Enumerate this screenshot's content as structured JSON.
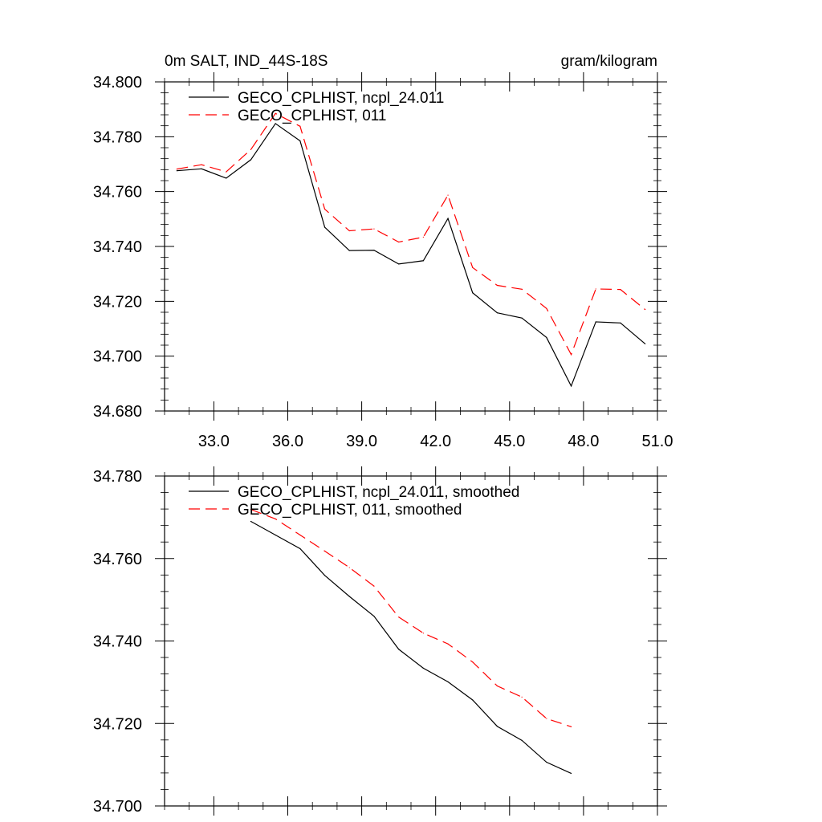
{
  "chart_data": [
    {
      "type": "line",
      "title": "0m SALT, IND_44S-18S",
      "units": "gram/kilogram",
      "xlabel": "",
      "ylabel": "",
      "xlim": [
        31.0,
        51.0
      ],
      "ylim": [
        34.68,
        34.8
      ],
      "xticks": [
        33.0,
        36.0,
        39.0,
        42.0,
        45.0,
        48.0,
        51.0
      ],
      "xtick_labels": [
        "33.0",
        "36.0",
        "39.0",
        "42.0",
        "45.0",
        "48.0",
        "51.0"
      ],
      "yticks": [
        34.68,
        34.7,
        34.72,
        34.74,
        34.76,
        34.78,
        34.8
      ],
      "ytick_labels": [
        "34.680",
        "34.700",
        "34.720",
        "34.740",
        "34.760",
        "34.780",
        "34.800"
      ],
      "legend_position": "top-left",
      "x": [
        31.5,
        32.5,
        33.5,
        34.5,
        35.5,
        36.5,
        37.5,
        38.5,
        39.5,
        40.5,
        41.5,
        42.5,
        43.5,
        44.5,
        45.5,
        46.5,
        47.5,
        48.5,
        49.5,
        50.5
      ],
      "series": [
        {
          "name": "GECO_CPLHIST, ncpl_24.011",
          "color": "#000000",
          "dash": "solid",
          "values": [
            34.7676,
            34.7683,
            34.7649,
            34.7716,
            34.7848,
            34.7785,
            34.747,
            34.7385,
            34.7386,
            34.7336,
            34.7348,
            34.7502,
            34.7231,
            34.7158,
            34.7139,
            34.7068,
            34.6891,
            34.7125,
            34.7121,
            34.7045
          ]
        },
        {
          "name": "GECO_CPLHIST, 011",
          "color": "#ff0000",
          "dash": "dashed",
          "values": [
            34.7682,
            34.7698,
            34.7672,
            34.7753,
            34.7885,
            34.7838,
            34.7536,
            34.7457,
            34.7464,
            34.7416,
            34.7434,
            34.7587,
            34.7323,
            34.7258,
            34.7244,
            34.7174,
            34.7006,
            34.7245,
            34.7243,
            34.717
          ]
        }
      ]
    },
    {
      "type": "line",
      "title": "",
      "xlabel": "",
      "ylabel": "",
      "xlim": [
        31.0,
        51.0
      ],
      "ylim": [
        34.7,
        34.78
      ],
      "xticks": [
        33.0,
        36.0,
        39.0,
        42.0,
        45.0,
        48.0,
        51.0
      ],
      "yticks": [
        34.7,
        34.72,
        34.74,
        34.76,
        34.78
      ],
      "ytick_labels": [
        "34.700",
        "34.720",
        "34.740",
        "34.760",
        "34.780"
      ],
      "legend_position": "top-left",
      "x": [
        34.5,
        35.5,
        36.5,
        37.5,
        38.5,
        39.5,
        40.5,
        41.5,
        42.5,
        43.5,
        44.5,
        45.5,
        46.5,
        47.5
      ],
      "series": [
        {
          "name": "GECO_CPLHIST, ncpl_24.011, smoothed",
          "color": "#000000",
          "dash": "solid",
          "values": [
            34.769,
            34.7657,
            34.7624,
            34.7559,
            34.7508,
            34.746,
            34.738,
            34.7334,
            34.7301,
            34.7257,
            34.7193,
            34.7159,
            34.7106,
            34.7079
          ]
        },
        {
          "name": "GECO_CPLHIST, 011, smoothed",
          "color": "#ff0000",
          "dash": "dashed",
          "values": [
            34.7719,
            34.7696,
            34.7657,
            34.7618,
            34.7578,
            34.7533,
            34.7458,
            34.7419,
            34.7393,
            34.7349,
            34.7291,
            34.7264,
            34.7212,
            34.7192
          ]
        }
      ]
    }
  ]
}
